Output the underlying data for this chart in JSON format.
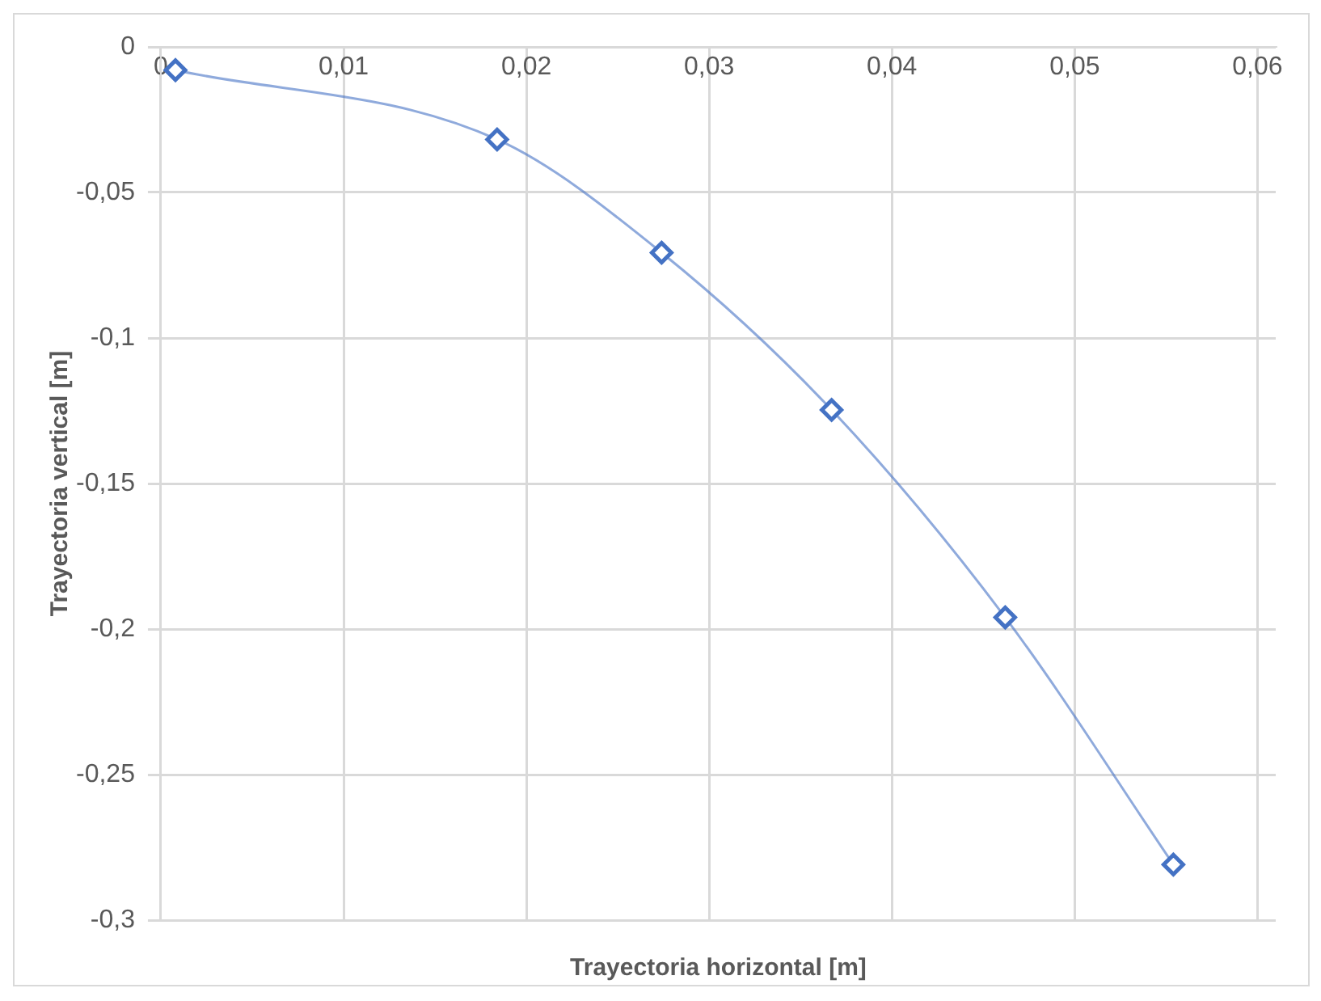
{
  "chart_data": {
    "type": "line",
    "xlabel": "Trayectoria horizontal [m]",
    "ylabel": "Trayectoria vertical [m]",
    "x": [
      0.0008,
      0.0184,
      0.0274,
      0.0367,
      0.0462,
      0.0554
    ],
    "series": [
      {
        "color": "#4472c4",
        "values": [
          -0.008,
          -0.0318,
          -0.0707,
          -0.1247,
          -0.196,
          -0.2809
        ]
      }
    ],
    "xlim": [
      0,
      0.061
    ],
    "xticks": [
      0,
      {
        "value": 0.01,
        "label": "0,01"
      },
      {
        "value": 0.02,
        "label": "0,02"
      },
      {
        "value": 0.03,
        "label": "0,03"
      },
      {
        "value": 0.04,
        "label": "0,04"
      },
      {
        "value": 0.05,
        "label": "0,05"
      },
      {
        "value": 0.06,
        "label": "0,06"
      }
    ],
    "ylim": [
      -0.3,
      0
    ],
    "yticks": [
      0,
      {
        "value": -0.05,
        "label": "-0,05"
      },
      {
        "value": -0.1,
        "label": "-0,1"
      },
      {
        "value": -0.15,
        "label": "-0,15"
      },
      {
        "value": -0.2,
        "label": "-0,2"
      },
      {
        "value": -0.25,
        "label": "-0,25"
      },
      {
        "value": -0.3,
        "label": "-0,3"
      }
    ],
    "grid": true,
    "marker": "diamond",
    "line_style": "solid",
    "legend": false
  }
}
